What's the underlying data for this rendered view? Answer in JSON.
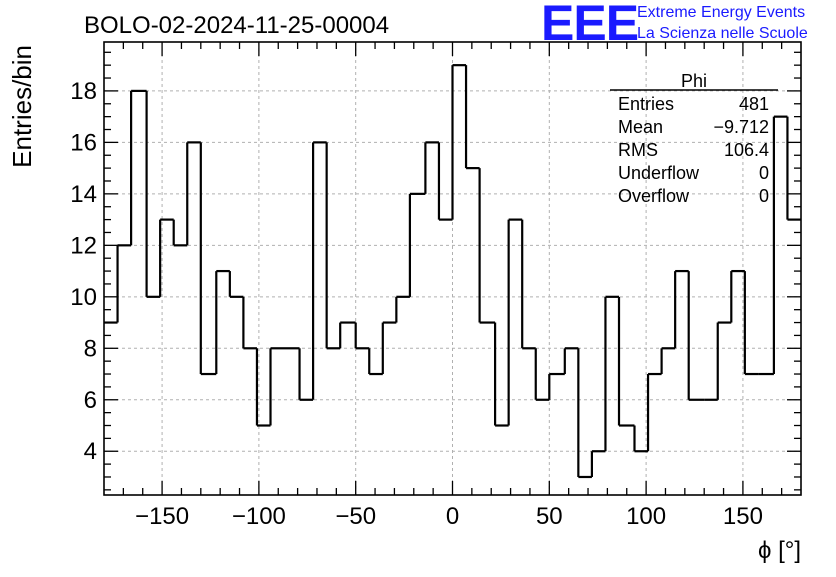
{
  "chart_data": {
    "type": "histogram",
    "title": "BOLO-02-2024-11-25-00004",
    "xlabel": "ϕ [°]",
    "ylabel": "Entries/bin",
    "xlim": [
      -180,
      180
    ],
    "ylim": [
      2.3,
      19.9
    ],
    "xticks": [
      -150,
      -100,
      -50,
      0,
      50,
      100,
      150
    ],
    "xticklabels": [
      "−150",
      "−100",
      "−50",
      "0",
      "50",
      "100",
      "150"
    ],
    "yticks": [
      4,
      6,
      8,
      10,
      12,
      14,
      16,
      18
    ],
    "yticklabels": [
      "4",
      "6",
      "8",
      "10",
      "12",
      "14",
      "16",
      "18"
    ],
    "grid": true,
    "bin_edges": [
      -180,
      -173.0,
      -166.0,
      -158.0,
      -151.0,
      -144.0,
      -137.0,
      -130.0,
      -122.0,
      -115.0,
      -108.0,
      -101.0,
      -94.0,
      -86.0,
      -79.0,
      -72.0,
      -65.0,
      -58.0,
      -50.0,
      -43.0,
      -36.0,
      -29.0,
      -22.0,
      -14.0,
      -7.0,
      0.0,
      7.0,
      14.0,
      22.0,
      29.0,
      36.0,
      43.0,
      50.0,
      58.0,
      65.0,
      72.0,
      79.0,
      86.0,
      94.0,
      101.0,
      108.0,
      115.0,
      122.0,
      130.0,
      137.0,
      144.0,
      151.0,
      158.0,
      166.0,
      173.0,
      180
    ],
    "values": [
      9,
      12,
      18,
      10,
      13,
      12,
      16,
      7,
      11,
      10,
      8,
      5,
      8,
      8,
      6,
      16,
      8,
      9,
      8,
      7,
      9,
      10,
      14,
      16,
      13,
      19,
      15,
      9,
      5,
      13,
      8,
      6,
      7,
      8,
      3,
      4,
      10,
      5,
      4,
      7,
      8,
      11,
      6,
      6,
      9,
      11,
      7,
      7,
      17,
      13
    ],
    "stats": {
      "title": "Phi",
      "rows": [
        {
          "label": "Entries",
          "value": "481"
        },
        {
          "label": "Mean",
          "value": "−9.712"
        },
        {
          "label": "RMS",
          "value": "106.4"
        },
        {
          "label": "Underflow",
          "value": "0"
        },
        {
          "label": "Overflow",
          "value": "0"
        }
      ]
    }
  },
  "logo": {
    "letters": "EEE",
    "line1": "Extreme Energy Events",
    "line2": "La Scienza nelle Scuole",
    "color": "#1a1aff"
  }
}
